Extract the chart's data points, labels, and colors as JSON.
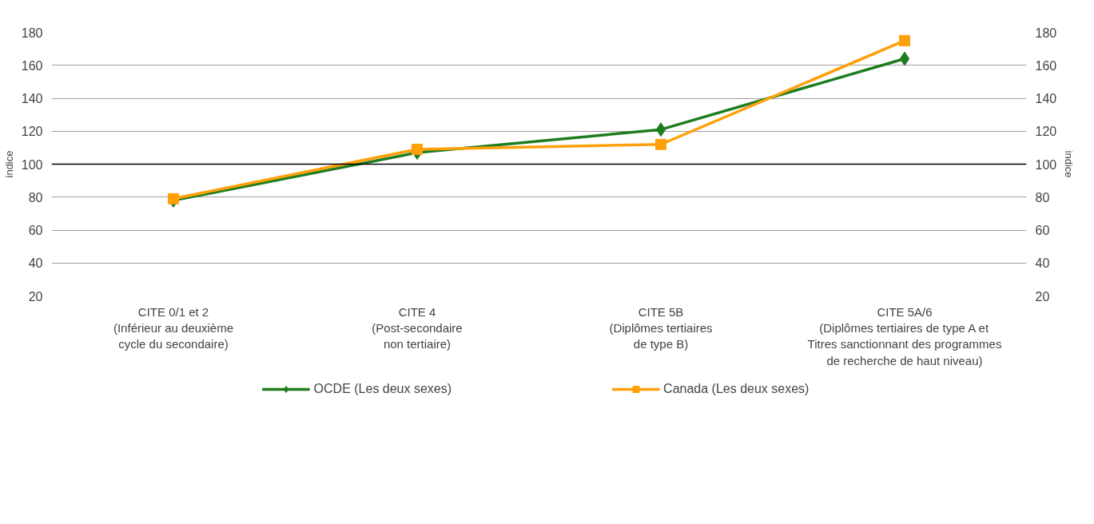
{
  "chart_data": {
    "type": "line",
    "categories": [
      "CITE 0/1 et 2\n(Inférieur au deuxième\ncycle du secondaire)",
      "CITE 4\n(Post-secondaire\nnon tertiaire)",
      "CITE 5B\n(Diplômes tertiaires\nde type B)",
      "CITE 5A/6\n(Diplômes tertiaires de type A et\nTitres sanctionnant des programmes\nde recherche de haut niveau)"
    ],
    "series": [
      {
        "name": "OCDE (Les deux sexes)",
        "color": "#1e7d1e",
        "marker": "diamond",
        "values": [
          78,
          107,
          121,
          164
        ]
      },
      {
        "name": "Canada (Les deux sexes)",
        "color": "#ffa00a",
        "marker": "square",
        "values": [
          79,
          109,
          112,
          175
        ]
      }
    ],
    "ylabel": "indice",
    "y2label": "indice",
    "ylim": [
      20,
      180
    ],
    "yticks": [
      20,
      40,
      60,
      80,
      100,
      120,
      140,
      160,
      180
    ],
    "y2lim": [
      20,
      180
    ],
    "y2ticks": [
      20,
      40,
      60,
      80,
      100,
      120,
      140,
      160,
      180
    ],
    "ref_lines": [
      {
        "axis": "y",
        "value": 100,
        "color": "#000000"
      }
    ],
    "grid": "y",
    "legend": "bottom",
    "line_style": "solid"
  }
}
